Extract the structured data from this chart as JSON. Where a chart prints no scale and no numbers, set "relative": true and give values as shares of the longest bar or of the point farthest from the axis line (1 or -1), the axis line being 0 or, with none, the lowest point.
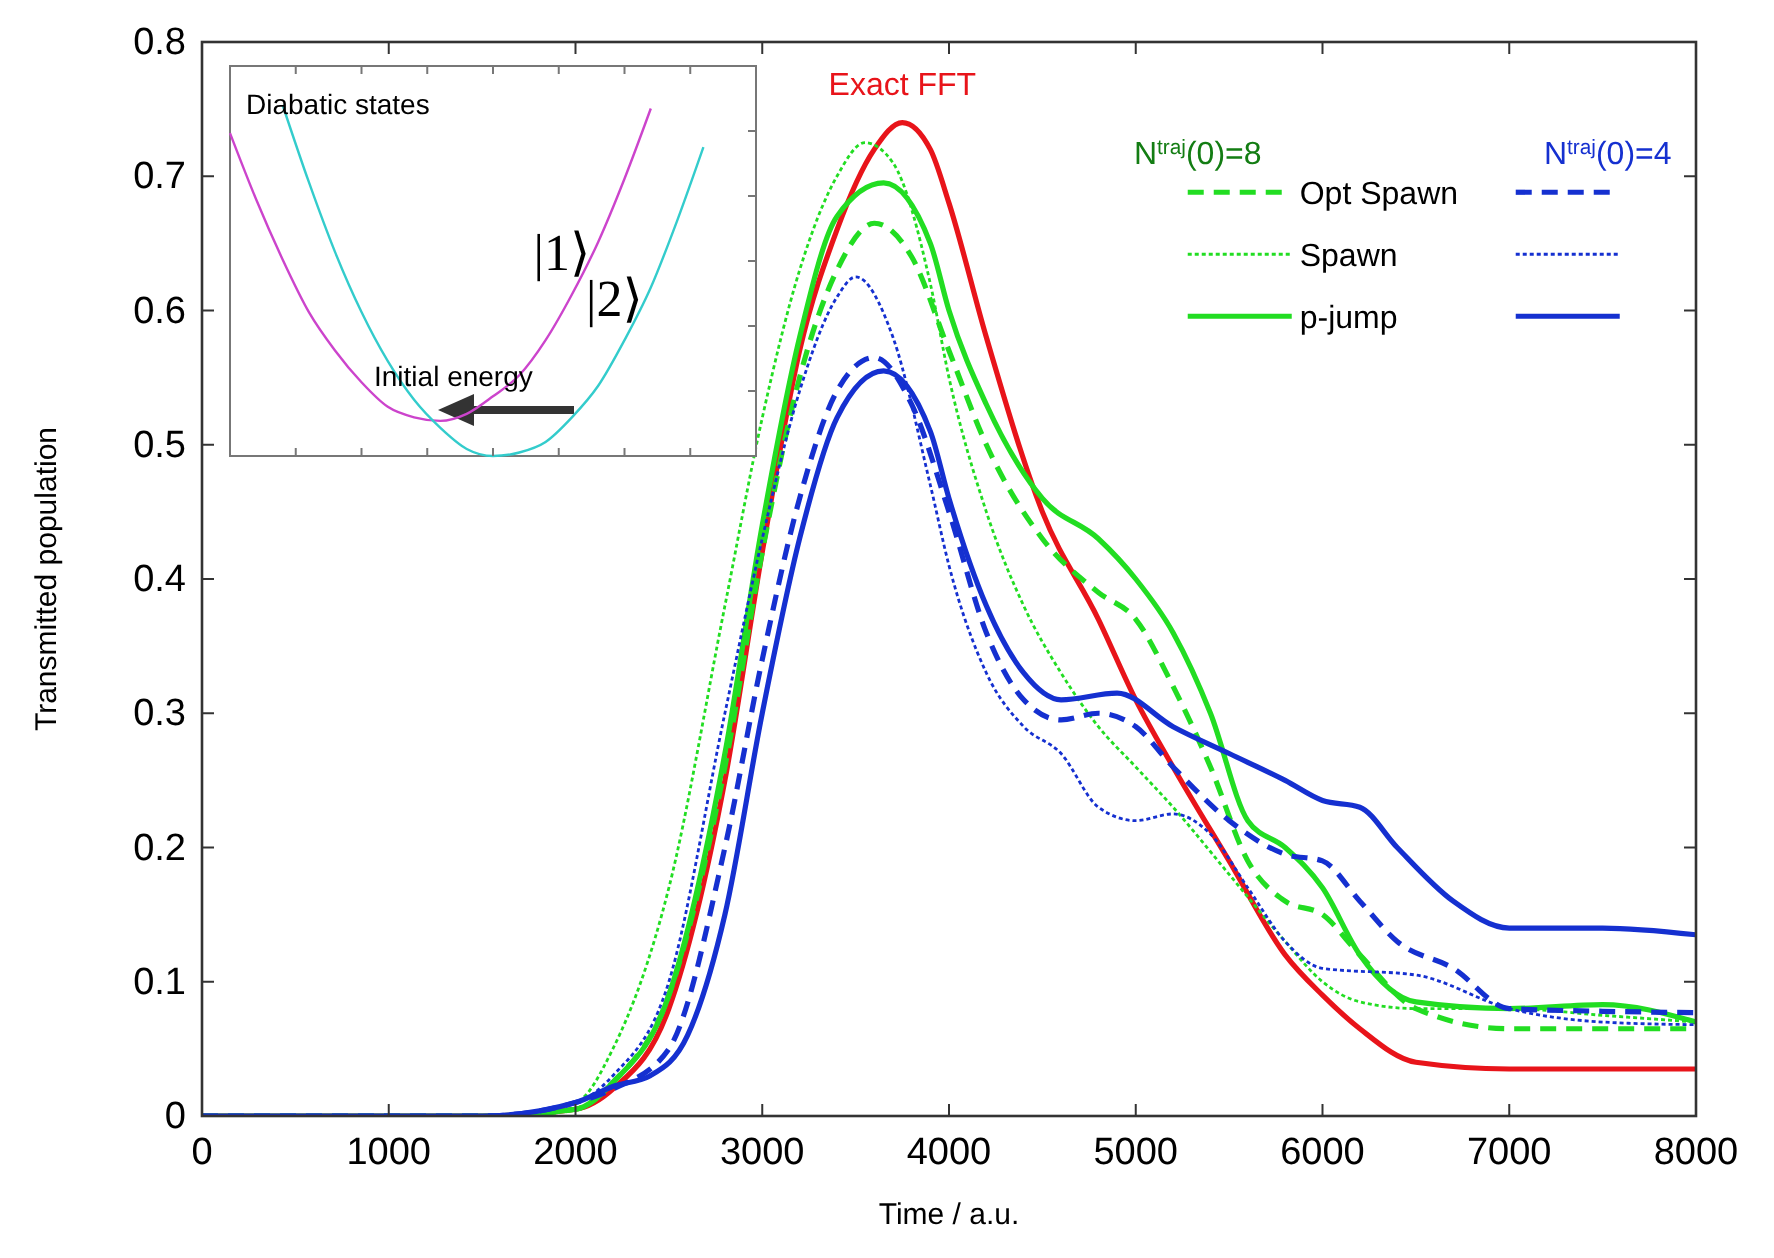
{
  "chart_data": [
    {
      "type": "line",
      "xlabel": "Time / a.u.",
      "ylabel": "Transmitted population",
      "xlim": [
        0,
        8000
      ],
      "xticks": [
        0,
        1000,
        2000,
        3000,
        4000,
        5000,
        6000,
        7000,
        8000
      ],
      "ylim": [
        0,
        0.8
      ],
      "yticks": [
        0,
        0.1,
        0.2,
        0.3,
        0.4,
        0.5,
        0.6,
        0.7,
        0.8
      ],
      "grid": false,
      "legend": "top right",
      "marker": "none",
      "annotations": [
        "N$^{traj}$(0)=8",
        "N$^{traj}$(0)=4"
      ],
      "series": [
        {
          "name": "Exact FFT",
          "color": "#e8141a",
          "line_style": "solid",
          "x": [
            0,
            1500,
            2000,
            2200,
            2500,
            2800,
            3000,
            3200,
            3400,
            3600,
            3750,
            3900,
            4000,
            4200,
            4500,
            4800,
            5000,
            5200,
            5500,
            5800,
            6000,
            6200,
            6500,
            7000,
            7500,
            8000
          ],
          "values": [
            0,
            0,
            0.005,
            0.02,
            0.08,
            0.25,
            0.42,
            0.57,
            0.66,
            0.72,
            0.74,
            0.72,
            0.68,
            0.58,
            0.45,
            0.37,
            0.31,
            0.26,
            0.19,
            0.12,
            0.09,
            0.065,
            0.04,
            0.035,
            0.035,
            0.035
          ]
        },
        {
          "name": "Opt Spawn",
          "color": "#22dd22",
          "line_style": "dashed",
          "x": [
            0,
            1500,
            2000,
            2200,
            2500,
            2800,
            3000,
            3200,
            3400,
            3600,
            3800,
            4000,
            4200,
            4500,
            4800,
            5000,
            5200,
            5400,
            5600,
            5800,
            6000,
            6200,
            6500,
            7000,
            7500,
            8000
          ],
          "values": [
            0,
            0,
            0.005,
            0.025,
            0.09,
            0.26,
            0.42,
            0.55,
            0.63,
            0.665,
            0.64,
            0.57,
            0.5,
            0.43,
            0.39,
            0.37,
            0.32,
            0.26,
            0.19,
            0.16,
            0.15,
            0.12,
            0.08,
            0.065,
            0.065,
            0.065
          ]
        },
        {
          "name": "Spawn",
          "color": "#22dd22",
          "line_style": "dotted",
          "x": [
            0,
            1500,
            2000,
            2200,
            2500,
            2800,
            3000,
            3200,
            3400,
            3550,
            3700,
            3900,
            4000,
            4200,
            4400,
            4600,
            4800,
            5000,
            5200,
            5500,
            5800,
            6000,
            6200,
            6500,
            7000,
            7500,
            8000
          ],
          "values": [
            0,
            0,
            0.01,
            0.05,
            0.17,
            0.38,
            0.52,
            0.63,
            0.7,
            0.725,
            0.71,
            0.62,
            0.55,
            0.45,
            0.38,
            0.33,
            0.29,
            0.26,
            0.23,
            0.18,
            0.13,
            0.1,
            0.085,
            0.08,
            0.08,
            0.075,
            0.07
          ]
        },
        {
          "name": "p-jump",
          "color": "#22dd22",
          "line_style": "solid",
          "x": [
            0,
            1500,
            2000,
            2200,
            2500,
            2800,
            3000,
            3200,
            3400,
            3650,
            3900,
            4000,
            4200,
            4500,
            4800,
            5000,
            5200,
            5400,
            5600,
            5800,
            6000,
            6200,
            6500,
            7000,
            7500,
            8000
          ],
          "values": [
            0,
            0,
            0.005,
            0.025,
            0.09,
            0.27,
            0.44,
            0.58,
            0.67,
            0.695,
            0.65,
            0.6,
            0.53,
            0.46,
            0.43,
            0.4,
            0.36,
            0.3,
            0.22,
            0.2,
            0.17,
            0.12,
            0.085,
            0.08,
            0.083,
            0.07
          ]
        },
        {
          "color": "#1530d0",
          "line_style": "dashed",
          "x": [
            0,
            1500,
            2000,
            2200,
            2500,
            2800,
            3000,
            3200,
            3400,
            3600,
            3800,
            4000,
            4200,
            4400,
            4600,
            4800,
            5000,
            5200,
            5500,
            5800,
            6000,
            6200,
            6400,
            6700,
            7000,
            7500,
            8000
          ],
          "values": [
            0,
            0,
            0.01,
            0.02,
            0.05,
            0.2,
            0.34,
            0.46,
            0.54,
            0.565,
            0.53,
            0.45,
            0.36,
            0.31,
            0.295,
            0.3,
            0.29,
            0.26,
            0.22,
            0.195,
            0.19,
            0.16,
            0.13,
            0.11,
            0.08,
            0.078,
            0.077
          ]
        },
        {
          "color": "#1530d0",
          "line_style": "dotted",
          "x": [
            0,
            1500,
            2000,
            2200,
            2500,
            2800,
            3000,
            3200,
            3400,
            3500,
            3700,
            3900,
            4000,
            4200,
            4400,
            4600,
            4800,
            5000,
            5200,
            5400,
            5600,
            5800,
            6000,
            6500,
            7000,
            7500,
            8000
          ],
          "values": [
            0,
            0,
            0.01,
            0.03,
            0.1,
            0.3,
            0.43,
            0.54,
            0.61,
            0.625,
            0.58,
            0.47,
            0.41,
            0.33,
            0.29,
            0.27,
            0.23,
            0.22,
            0.225,
            0.21,
            0.17,
            0.13,
            0.11,
            0.105,
            0.08,
            0.07,
            0.068
          ]
        },
        {
          "color": "#1530d0",
          "line_style": "solid",
          "x": [
            0,
            1500,
            2000,
            2200,
            2400,
            2600,
            2800,
            3000,
            3200,
            3400,
            3650,
            3900,
            4000,
            4200,
            4400,
            4600,
            4900,
            5200,
            5500,
            5800,
            6000,
            6200,
            6400,
            6700,
            7000,
            7500,
            8000
          ],
          "values": [
            0,
            0,
            0.01,
            0.022,
            0.03,
            0.06,
            0.15,
            0.3,
            0.43,
            0.52,
            0.555,
            0.51,
            0.46,
            0.38,
            0.33,
            0.31,
            0.315,
            0.29,
            0.27,
            0.25,
            0.235,
            0.23,
            0.2,
            0.16,
            0.14,
            0.14,
            0.135
          ]
        }
      ]
    },
    {
      "type": "line",
      "title": "Diabatic states",
      "relative": true,
      "legend": false,
      "annotations": [
        "Initial energy"
      ],
      "categories": [
        null,
        null,
        null,
        null,
        null,
        null,
        null,
        null,
        null,
        null,
        null,
        null,
        null,
        null,
        null,
        null,
        null,
        null,
        null,
        null,
        null
      ],
      "series": [
        {
          "name": "|1⟩",
          "color": "#cc44cc",
          "line_style": "solid",
          "values": [
            0.92,
            0.73,
            0.56,
            0.41,
            0.3,
            0.21,
            0.14,
            0.11,
            0.1,
            0.12,
            0.17,
            0.23,
            0.33,
            0.46,
            0.61,
            0.79,
            0.99,
            null,
            null,
            null,
            null
          ]
        },
        {
          "name": "|2⟩",
          "color": "#33cccc",
          "line_style": "solid",
          "values": [
            null,
            null,
            1,
            0.78,
            0.58,
            0.41,
            0.27,
            0.16,
            0.08,
            0.02,
            0,
            0.01,
            0.04,
            0.11,
            0.2,
            0.33,
            0.48,
            0.67,
            0.88,
            null,
            null
          ]
        }
      ]
    }
  ]
}
